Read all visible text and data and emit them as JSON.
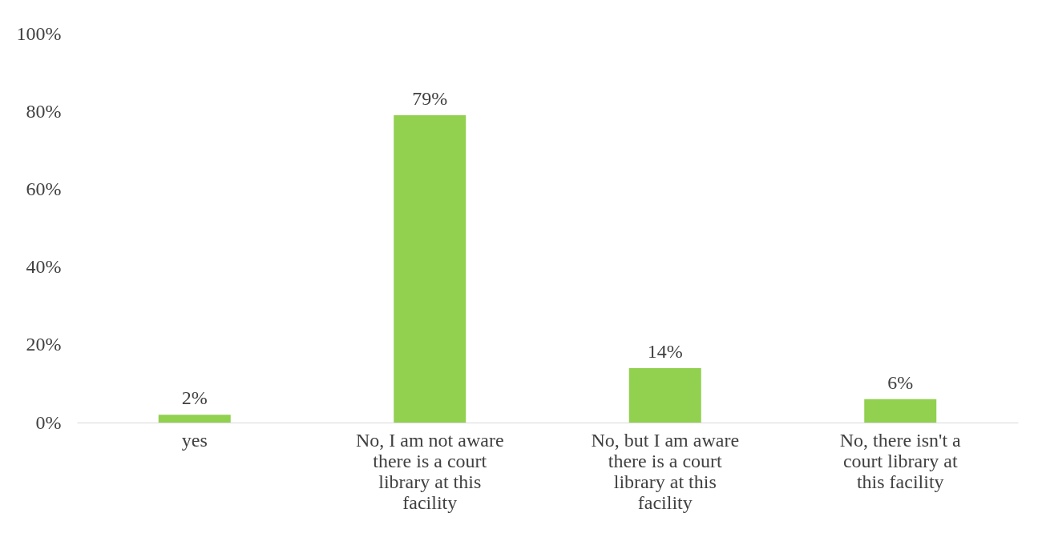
{
  "chart_data": {
    "type": "bar",
    "categories": [
      "yes",
      "No, I am not aware there is a court library at this facility",
      "No, but I am aware there is a court library at this facility",
      "No, there isn't a court library at this facility"
    ],
    "values": [
      2,
      79,
      14,
      6
    ],
    "color": "#92d050",
    "value_labels": [
      "2%",
      "79%",
      "14%",
      "6%"
    ],
    "ylim": [
      0,
      100
    ],
    "yticks": [
      {
        "value": 0,
        "label": "0%"
      },
      {
        "value": 20,
        "label": "20%"
      },
      {
        "value": 40,
        "label": "40%"
      },
      {
        "value": 60,
        "label": "60%"
      },
      {
        "value": 80,
        "label": "80%"
      },
      {
        "value": 100,
        "label": "100%"
      }
    ],
    "grid": false
  }
}
